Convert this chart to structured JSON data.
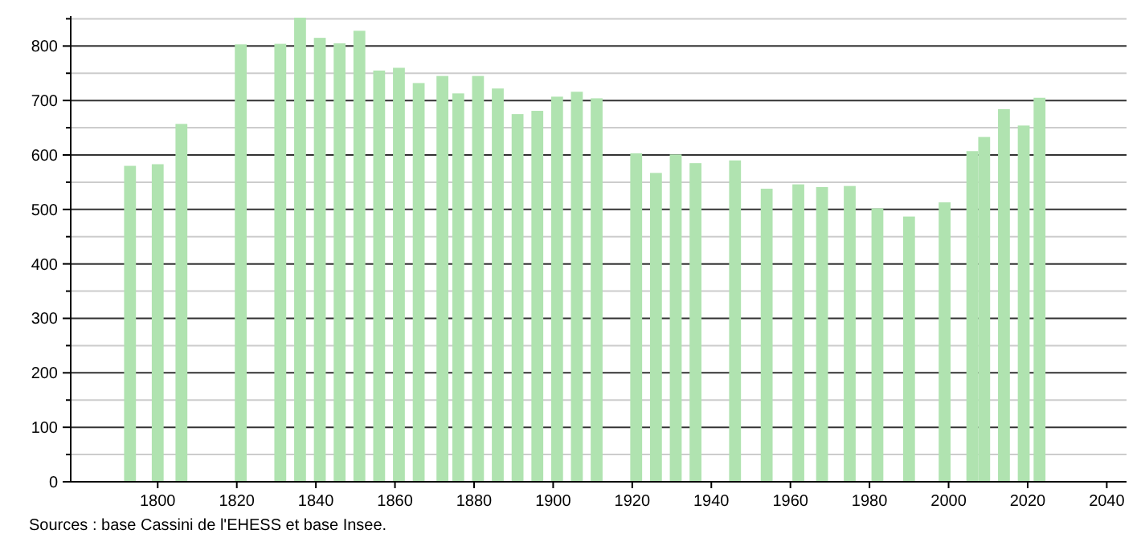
{
  "chart_data": {
    "type": "bar",
    "x": [
      1793,
      1800,
      1806,
      1821,
      1831,
      1836,
      1841,
      1846,
      1851,
      1856,
      1861,
      1866,
      1872,
      1876,
      1881,
      1886,
      1891,
      1896,
      1901,
      1906,
      1911,
      1921,
      1926,
      1931,
      1936,
      1946,
      1954,
      1962,
      1968,
      1975,
      1982,
      1990,
      1999,
      2006,
      2009,
      2014,
      2019,
      2023
    ],
    "values": [
      580,
      583,
      657,
      803,
      804,
      852,
      815,
      805,
      828,
      755,
      760,
      732,
      745,
      713,
      745,
      722,
      675,
      681,
      707,
      716,
      704,
      603,
      567,
      601,
      585,
      590,
      538,
      546,
      541,
      543,
      502,
      487,
      513,
      607,
      633,
      684,
      654,
      705
    ],
    "color": "#b0e3b0",
    "xlim": [
      1778,
      2045
    ],
    "xticks": [
      1800,
      1820,
      1840,
      1860,
      1880,
      1900,
      1920,
      1940,
      1960,
      1980,
      2000,
      2020,
      2040
    ],
    "ylim": [
      0,
      855
    ],
    "yticks": [
      0,
      {
        "value": 50,
        "label": null
      },
      100,
      {
        "value": 150,
        "label": null
      },
      200,
      {
        "value": 250,
        "label": null
      },
      300,
      {
        "value": 350,
        "label": null
      },
      400,
      {
        "value": 450,
        "label": null
      },
      500,
      {
        "value": 550,
        "label": null
      },
      600,
      {
        "value": 650,
        "label": null
      },
      700,
      {
        "value": 750,
        "label": null
      },
      800,
      {
        "value": 850,
        "label": null
      }
    ],
    "grid": "y",
    "annotations": [
      "Sources : base Cassini de l'EHESS et base Insee."
    ]
  }
}
